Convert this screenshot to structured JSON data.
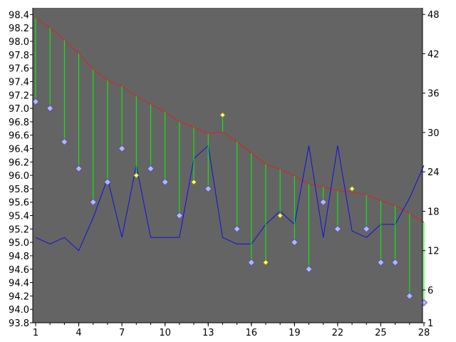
{
  "chart_data": {
    "type": "line",
    "title": "",
    "xlabel": "",
    "ylabel_left": "",
    "ylabel_right": "",
    "x": [
      1,
      2,
      3,
      4,
      5,
      6,
      7,
      8,
      9,
      10,
      11,
      12,
      13,
      14,
      15,
      16,
      17,
      18,
      19,
      20,
      21,
      22,
      23,
      24,
      25,
      26,
      27,
      28
    ],
    "x_ticks": [
      "1",
      "4",
      "7",
      "10",
      "13",
      "16",
      "19",
      "22",
      "25",
      "28"
    ],
    "xlim": [
      1,
      28
    ],
    "ylim_left": [
      93.8,
      98.5
    ],
    "y_ticks_left": [
      "93.8",
      "94.0",
      "94.2",
      "94.4",
      "94.6",
      "94.8",
      "95.0",
      "95.2",
      "95.4",
      "95.6",
      "95.8",
      "96.0",
      "96.2",
      "96.4",
      "96.6",
      "96.8",
      "97.0",
      "97.2",
      "97.4",
      "97.6",
      "97.8",
      "98.0",
      "98.2",
      "98.4"
    ],
    "ylim_right": [
      1,
      49
    ],
    "y_ticks_right": [
      "1",
      "6",
      "12",
      "18",
      "24",
      "30",
      "36",
      "42",
      "48"
    ],
    "grid": false,
    "legend": "none",
    "colors": {
      "plot_background": "#646464",
      "upper_line": "#e02020",
      "stems": "#00ff00",
      "markers_primary": "#b4b4ff",
      "markers_highlight": "#ffff66",
      "right_axis_line": "#1010dd"
    },
    "series": [
      {
        "axis": "left",
        "style": "line",
        "values": [
          98.35,
          98.2,
          98.02,
          97.82,
          97.58,
          97.42,
          97.33,
          97.18,
          97.06,
          96.95,
          96.8,
          96.72,
          96.62,
          96.65,
          96.5,
          96.33,
          96.17,
          96.09,
          95.99,
          95.87,
          95.83,
          95.77,
          95.75,
          95.71,
          95.62,
          95.55,
          95.43,
          95.3
        ]
      },
      {
        "axis": "left",
        "style": "markers",
        "values": [
          97.1,
          97.0,
          96.5,
          96.1,
          95.6,
          95.9,
          96.4,
          96.0,
          96.1,
          95.9,
          95.4,
          95.9,
          95.8,
          96.9,
          95.2,
          94.7,
          94.7,
          95.4,
          95.0,
          94.6,
          95.6,
          95.2,
          95.8,
          95.2,
          94.7,
          94.7,
          94.2,
          94.1
        ],
        "highlighted_x": [
          8,
          12,
          14,
          17,
          18,
          23
        ]
      },
      {
        "axis": "right",
        "style": "line",
        "values": [
          14,
          13,
          14,
          12,
          17,
          23,
          14,
          25,
          14,
          14,
          14,
          26,
          28,
          14,
          13,
          13,
          16,
          18,
          16,
          28,
          14,
          28,
          15,
          14,
          16,
          16,
          20,
          25
        ]
      }
    ]
  }
}
